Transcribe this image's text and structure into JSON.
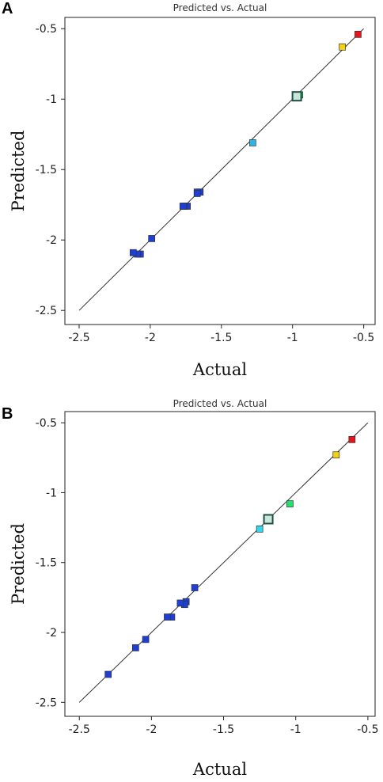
{
  "panels": [
    {
      "letter": "A",
      "chart_data": {
        "type": "scatter",
        "title": "Predicted vs. Actual",
        "xlabel": "Actual",
        "ylabel": "Predicted",
        "xlim": [
          -2.6,
          -0.42
        ],
        "ylim": [
          -2.6,
          -0.42
        ],
        "x_ticks": [
          "-2.5",
          "-2",
          "-1.5",
          "-1",
          "-0.5"
        ],
        "x_tick_values": [
          -2.5,
          -2,
          -1.5,
          -1,
          -0.5
        ],
        "y_ticks": [
          "-0.5",
          "-1",
          "-1.5",
          "-2",
          "-2.5"
        ],
        "y_tick_values": [
          -0.5,
          -1,
          -1.5,
          -2,
          -2.5
        ],
        "grid": false,
        "fit_line": [
          [
            -2.5,
            -2.5
          ],
          [
            -0.5,
            -0.5
          ]
        ],
        "points": [
          {
            "x": -0.54,
            "y": -0.54,
            "color": "#e8131b"
          },
          {
            "x": -0.65,
            "y": -0.63,
            "color": "#f5d20f"
          },
          {
            "x": -0.95,
            "y": -0.97,
            "color": "#22e36a"
          },
          {
            "x": -0.97,
            "y": -0.98,
            "color": "#2f8f6f",
            "hollow": true
          },
          {
            "x": -1.28,
            "y": -1.31,
            "color": "#28b6ea"
          },
          {
            "x": -1.65,
            "y": -1.66,
            "color": "#1d3fd6"
          },
          {
            "x": -1.67,
            "y": -1.66,
            "color": "#1d3fd6"
          },
          {
            "x": -1.67,
            "y": -1.67,
            "color": "#1d3fd6"
          },
          {
            "x": -1.74,
            "y": -1.76,
            "color": "#1d3fd6"
          },
          {
            "x": -1.76,
            "y": -1.76,
            "color": "#1d3fd6"
          },
          {
            "x": -1.77,
            "y": -1.76,
            "color": "#1d3fd6"
          },
          {
            "x": -1.99,
            "y": -1.99,
            "color": "#1d3fd6"
          },
          {
            "x": -2.07,
            "y": -2.1,
            "color": "#1d3fd6"
          },
          {
            "x": -2.09,
            "y": -2.1,
            "color": "#1d3fd6"
          },
          {
            "x": -2.12,
            "y": -2.09,
            "color": "#1d3fd6"
          }
        ]
      }
    },
    {
      "letter": "B",
      "chart_data": {
        "type": "scatter",
        "title": "Predicted vs. Actual",
        "xlabel": "Actual",
        "ylabel": "Predicted",
        "xlim": [
          -2.6,
          -0.45
        ],
        "ylim": [
          -2.6,
          -0.42
        ],
        "x_ticks": [
          "-2.5",
          "-2",
          "-1.5",
          "-1",
          "-0.5"
        ],
        "x_tick_values": [
          -2.5,
          -2,
          -1.5,
          -1,
          -0.5
        ],
        "y_ticks": [
          "-0.5",
          "-1",
          "-1.5",
          "-2",
          "-2.5"
        ],
        "y_tick_values": [
          -0.5,
          -1,
          -1.5,
          -2,
          -2.5
        ],
        "grid": false,
        "fit_line": [
          [
            -2.5,
            -2.5
          ],
          [
            -0.5,
            -0.5
          ]
        ],
        "points": [
          {
            "x": -0.61,
            "y": -0.62,
            "color": "#e8131b"
          },
          {
            "x": -0.72,
            "y": -0.73,
            "color": "#f5d20f"
          },
          {
            "x": -1.04,
            "y": -1.08,
            "color": "#22e36a"
          },
          {
            "x": -1.19,
            "y": -1.19,
            "color": "#2f8f6f",
            "hollow": true
          },
          {
            "x": -1.25,
            "y": -1.26,
            "color": "#2fd8ea"
          },
          {
            "x": -1.7,
            "y": -1.68,
            "color": "#1d3fd6"
          },
          {
            "x": -1.76,
            "y": -1.78,
            "color": "#1d3fd6"
          },
          {
            "x": -1.77,
            "y": -1.8,
            "color": "#1d3fd6"
          },
          {
            "x": -1.8,
            "y": -1.79,
            "color": "#1d3fd6"
          },
          {
            "x": -1.86,
            "y": -1.89,
            "color": "#1d3fd6"
          },
          {
            "x": -1.89,
            "y": -1.89,
            "color": "#1d3fd6"
          },
          {
            "x": -2.04,
            "y": -2.05,
            "color": "#1d3fd6"
          },
          {
            "x": -2.11,
            "y": -2.11,
            "color": "#1d3fd6"
          },
          {
            "x": -2.3,
            "y": -2.3,
            "color": "#1d3fd6"
          }
        ]
      }
    }
  ]
}
